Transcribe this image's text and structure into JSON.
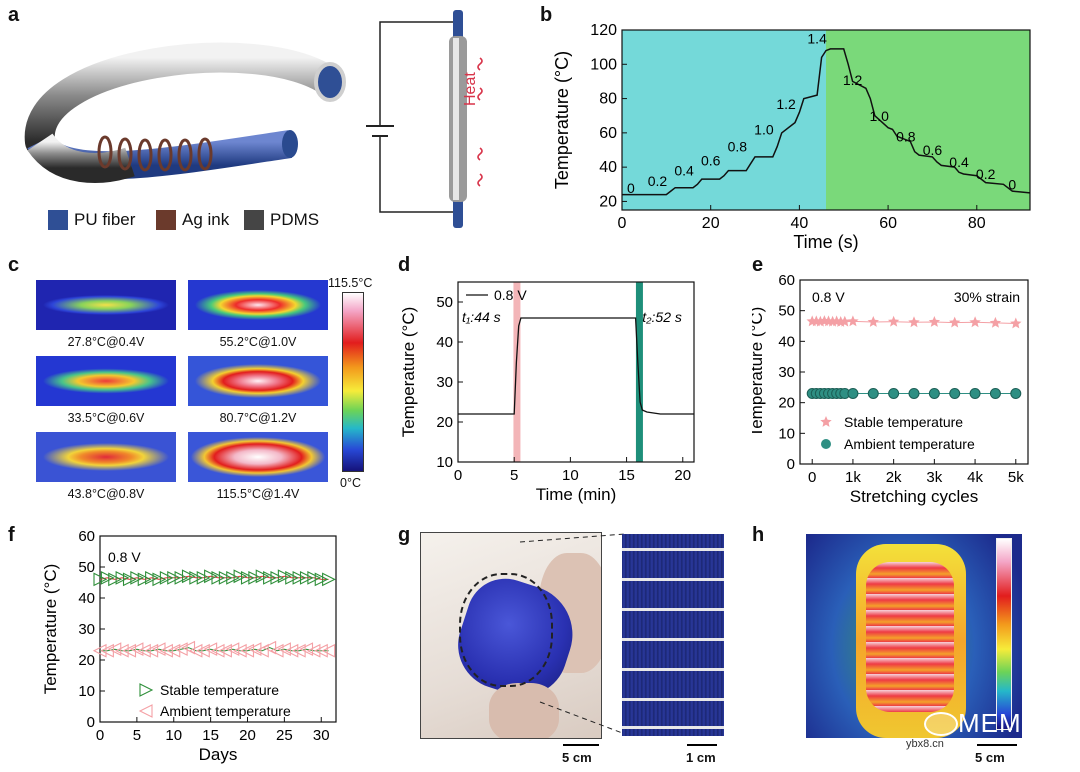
{
  "panels": [
    "a",
    "b",
    "c",
    "d",
    "e",
    "f",
    "g",
    "h"
  ],
  "a": {
    "legend": [
      "PU fiber",
      "Ag ink",
      "PDMS"
    ],
    "legend_colors": [
      "#2f4f95",
      "#6b3a2c",
      "#454545"
    ],
    "heat_label": "Heat"
  },
  "c": {
    "scale_max": "115.5°C",
    "scale_min": "0°C",
    "captions": [
      "27.8°C@0.4V",
      "55.2°C@1.0V",
      "33.5°C@0.6V",
      "80.7°C@1.2V",
      "43.8°C@0.8V",
      "115.5°C@1.4V"
    ]
  },
  "g": {
    "scale_left": "5 cm",
    "scale_right": "1 cm"
  },
  "h": {
    "scale": "5 cm"
  },
  "watermark": {
    "brand": "MEMS",
    "site": "ybx8.cn"
  },
  "chart_data": [
    {
      "panel": "b",
      "type": "line",
      "xlabel": "Time (s)",
      "ylabel": "Temperature (°C)",
      "xlim": [
        0,
        92
      ],
      "ylim": [
        15,
        120
      ],
      "xticks": [
        0,
        20,
        40,
        60,
        80
      ],
      "yticks": [
        20,
        40,
        60,
        80,
        100,
        120
      ],
      "background_split_x": 46,
      "background_colors": [
        "#74d9d9",
        "#7ad97a"
      ],
      "series": [
        {
          "x": [
            0,
            5,
            6,
            10,
            11,
            12,
            16,
            17,
            18,
            22,
            23,
            24,
            28,
            29,
            30,
            34,
            35,
            36,
            39,
            40,
            41,
            44,
            45,
            46,
            47,
            48,
            50,
            51,
            52,
            55,
            56,
            57,
            60,
            61,
            62,
            65,
            66,
            67,
            70,
            71,
            72,
            75,
            76,
            77,
            80,
            81,
            82,
            86,
            87,
            88,
            92
          ],
          "y": [
            24,
            24,
            24,
            24,
            26,
            28,
            28,
            30,
            33,
            33,
            35,
            38,
            38,
            42,
            46,
            46,
            52,
            60,
            66,
            72,
            80,
            82,
            104,
            108,
            109,
            109,
            109,
            100,
            90,
            86,
            80,
            70,
            63,
            62,
            58,
            55,
            49,
            47,
            46,
            43,
            41,
            40,
            37,
            36,
            35,
            33,
            31,
            30,
            28,
            26,
            25
          ]
        }
      ],
      "annotations": [
        {
          "x": 2,
          "y": 25,
          "text": "0"
        },
        {
          "x": 8,
          "y": 29,
          "text": "0.2"
        },
        {
          "x": 14,
          "y": 35,
          "text": "0.4"
        },
        {
          "x": 20,
          "y": 41,
          "text": "0.6"
        },
        {
          "x": 26,
          "y": 49,
          "text": "0.8"
        },
        {
          "x": 32,
          "y": 59,
          "text": "1.0"
        },
        {
          "x": 37,
          "y": 74,
          "text": "1.2"
        },
        {
          "x": 44,
          "y": 112,
          "text": "1.4"
        },
        {
          "x": 52,
          "y": 88,
          "text": "1.2"
        },
        {
          "x": 58,
          "y": 67,
          "text": "1.0"
        },
        {
          "x": 64,
          "y": 55,
          "text": "0.8"
        },
        {
          "x": 70,
          "y": 47,
          "text": "0.6"
        },
        {
          "x": 76,
          "y": 40,
          "text": "0.4"
        },
        {
          "x": 82,
          "y": 33,
          "text": "0.2"
        },
        {
          "x": 88,
          "y": 27,
          "text": "0"
        }
      ]
    },
    {
      "panel": "d",
      "type": "line",
      "xlabel": "Time (min)",
      "ylabel": "Temperature (°C)",
      "xlim": [
        0,
        21
      ],
      "ylim": [
        10,
        55
      ],
      "xticks": [
        0,
        5,
        10,
        15,
        20
      ],
      "yticks": [
        10,
        20,
        30,
        40,
        50
      ],
      "legend": "0.8 V",
      "labels": {
        "t1": "t₁:44 s",
        "t2": "t₂:52 s"
      },
      "bands": [
        {
          "x": 5.2,
          "color": "#f3b5b8"
        },
        {
          "x": 16.1,
          "color": "#1e8f7a"
        }
      ],
      "series": [
        {
          "name": "0.8 V",
          "x": [
            0,
            4,
            5.0,
            5.2,
            5.4,
            5.6,
            6,
            8,
            10,
            12,
            14,
            15.8,
            16.0,
            16.2,
            16.4,
            16.8,
            18,
            21
          ],
          "y": [
            22,
            22,
            22,
            35,
            44,
            46,
            46,
            46,
            46,
            46,
            46,
            46,
            35,
            25,
            23,
            22.5,
            22,
            22
          ]
        }
      ]
    },
    {
      "panel": "e",
      "type": "scatter",
      "xlabel": "Stretching cycles",
      "ylabel": "Temperature (°C)",
      "xlim": [
        -300,
        5300
      ],
      "ylim": [
        0,
        60
      ],
      "xticks": [
        0,
        1000,
        2000,
        3000,
        4000,
        5000
      ],
      "xtick_labels": [
        "0",
        "1k",
        "2k",
        "3k",
        "4k",
        "5k"
      ],
      "yticks": [
        0,
        10,
        20,
        30,
        40,
        50,
        60
      ],
      "labels": {
        "voltage": "0.8 V",
        "strain": "30% strain"
      },
      "series": [
        {
          "name": "Stable temperature",
          "marker": "star",
          "color": "#f4a0a5",
          "x": [
            0,
            100,
            200,
            300,
            400,
            500,
            600,
            700,
            800,
            1000,
            1500,
            2000,
            2500,
            3000,
            3500,
            4000,
            4500,
            5000
          ],
          "y": [
            46.5,
            46.5,
            46.4,
            46.6,
            46.5,
            46.4,
            46.5,
            46.3,
            46.4,
            46.5,
            46.3,
            46.4,
            46.2,
            46.3,
            46.1,
            46.2,
            46.0,
            45.8
          ]
        },
        {
          "name": "Ambient temperature",
          "marker": "circle",
          "color": "#2e8f83",
          "x": [
            0,
            100,
            200,
            300,
            400,
            500,
            600,
            700,
            800,
            1000,
            1500,
            2000,
            2500,
            3000,
            3500,
            4000,
            4500,
            5000
          ],
          "y": [
            23,
            23,
            23,
            23,
            23,
            23,
            23,
            23,
            23,
            23,
            23,
            23,
            23,
            23,
            23,
            23,
            23,
            23
          ]
        }
      ]
    },
    {
      "panel": "f",
      "type": "scatter",
      "xlabel": "Days",
      "ylabel": "Temperature (°C)",
      "xlim": [
        0,
        32
      ],
      "ylim": [
        0,
        60
      ],
      "xticks": [
        0,
        5,
        10,
        15,
        20,
        25,
        30
      ],
      "yticks": [
        0,
        10,
        20,
        30,
        40,
        50,
        60
      ],
      "labels": {
        "voltage": "0.8 V"
      },
      "series": [
        {
          "name": "Stable temperature",
          "marker": "triangle-right",
          "color": "#2f8f3a",
          "x": [
            0,
            1,
            2,
            3,
            4,
            5,
            6,
            7,
            8,
            9,
            10,
            11,
            12,
            13,
            14,
            15,
            16,
            17,
            18,
            19,
            20,
            21,
            22,
            23,
            24,
            25,
            26,
            27,
            28,
            29,
            30,
            31
          ],
          "y": [
            46,
            46.5,
            46,
            46.5,
            46,
            46.5,
            46,
            46.5,
            46,
            46.5,
            46.5,
            46.5,
            47,
            46.5,
            46.5,
            47,
            46.5,
            46.5,
            46.5,
            47,
            46.5,
            46.5,
            47,
            46.5,
            46.5,
            47,
            46.5,
            46.5,
            46.5,
            46.5,
            46,
            46
          ]
        },
        {
          "name": "Ambient temperature",
          "marker": "triangle-left",
          "color": "#f4a0a5",
          "x": [
            0,
            1,
            2,
            3,
            4,
            5,
            6,
            7,
            8,
            9,
            10,
            11,
            12,
            13,
            14,
            15,
            16,
            17,
            18,
            19,
            20,
            21,
            22,
            23,
            24,
            25,
            26,
            27,
            28,
            29,
            30,
            31
          ],
          "y": [
            23,
            23,
            23.5,
            23,
            23,
            23.5,
            23,
            23,
            23.5,
            23,
            23,
            23.5,
            24,
            23,
            23,
            23.5,
            23,
            23,
            23.5,
            23,
            23,
            23.5,
            23,
            24,
            23,
            23.5,
            23,
            23,
            23.5,
            23,
            23,
            23
          ]
        }
      ]
    }
  ]
}
